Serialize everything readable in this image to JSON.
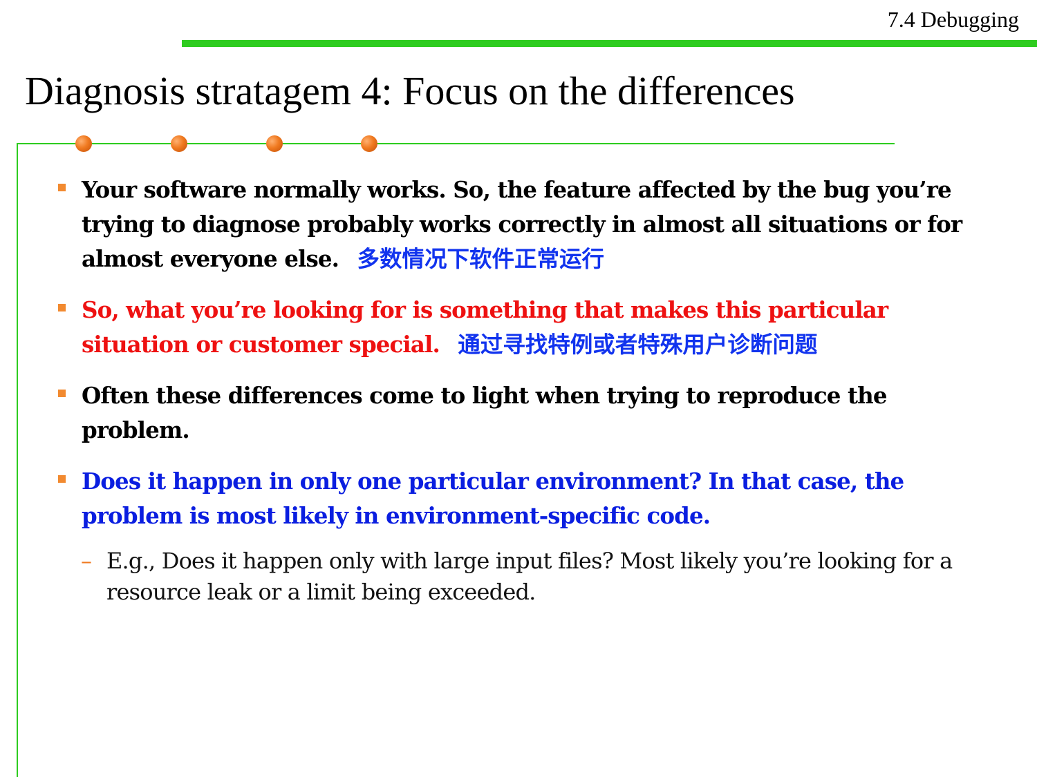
{
  "header": {
    "section_label": "7.4 Debugging",
    "title": "Diagnosis stratagem 4: Focus on the differences"
  },
  "colors": {
    "accent_green": "#2ecc1f",
    "bullet_orange": "#f28a30",
    "highlight_red": "#ee1111",
    "highlight_blue": "#0a1ee0"
  },
  "bullets": [
    {
      "text": "Your software normally works. So, the feature affected by the bug you’re trying to diagnose probably works correctly in almost all situations or for almost everyone else.",
      "note": "多数情况下软件正常运行"
    },
    {
      "text": "So, what you’re looking for is something that makes this particular situation or customer special.",
      "note": "通过寻找特例或者特殊用户诊断问题"
    },
    {
      "text": "Often these differences come to light when trying to reproduce the problem."
    },
    {
      "text": "Does it happen in only one particular environment? In that case, the problem is most likely in environment-specific code.",
      "sub_marker": "–",
      "sub_text": "E.g., Does it happen only with large input files? Most likely you’re looking for a resource leak or a limit being exceeded."
    }
  ]
}
